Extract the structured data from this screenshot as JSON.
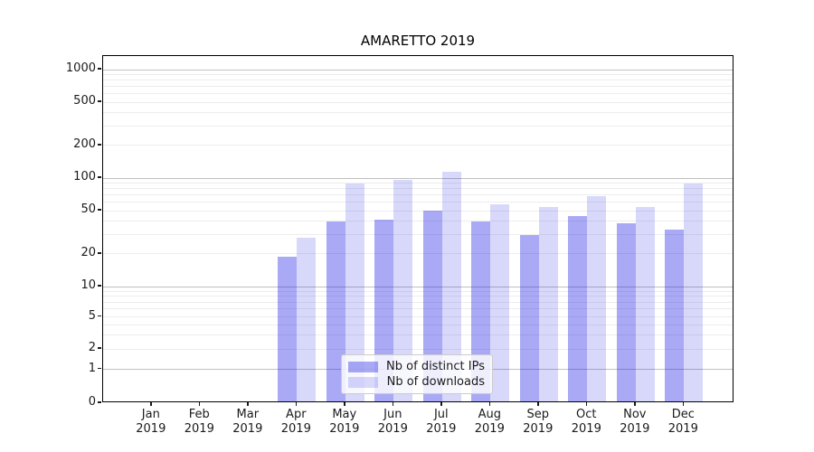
{
  "title": "AMARETTO 2019",
  "legend": {
    "items": [
      {
        "label": "Nb of distinct IPs",
        "series_key": "ips"
      },
      {
        "label": "Nb of downloads",
        "series_key": "downloads"
      }
    ]
  },
  "colors": {
    "ips_bar": "rgba(10,10,230,0.35)",
    "downloads_bar": "rgba(10,10,230,0.16)",
    "major_grid": "#c0c0c0",
    "minor_grid": "#ededed",
    "axis_text": "#1a1a1a"
  },
  "chart_data": {
    "type": "bar",
    "title": "AMARETTO 2019",
    "categories": [
      "Jan 2019",
      "Feb 2019",
      "Mar 2019",
      "Apr 2019",
      "May 2019",
      "Jun 2019",
      "Jul 2019",
      "Aug 2019",
      "Sep 2019",
      "Oct 2019",
      "Nov 2019",
      "Dec 2019"
    ],
    "series": [
      {
        "name": "Nb of distinct IPs",
        "values": [
          0,
          0,
          0,
          18,
          38,
          40,
          48,
          38,
          29,
          43,
          37,
          32
        ]
      },
      {
        "name": "Nb of downloads",
        "values": [
          0,
          0,
          0,
          27,
          86,
          92,
          110,
          55,
          52,
          66,
          52,
          86
        ]
      }
    ],
    "xlabel": "",
    "ylabel": "",
    "yscale": "symlog",
    "y_ticks": [
      0,
      1,
      2,
      5,
      10,
      20,
      50,
      100,
      200,
      500,
      1000
    ],
    "ylim": [
      0,
      1300
    ],
    "grid": true,
    "legend_position": "lower-center-inside"
  }
}
